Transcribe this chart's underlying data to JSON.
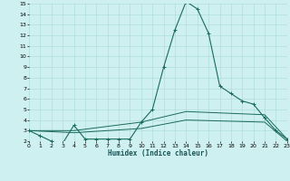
{
  "background_color": "#cff0f0",
  "grid_color": "#a8d8d8",
  "line_color": "#1a6b5a",
  "xlabel": "Humidex (Indice chaleur)",
  "xlim": [
    0,
    23
  ],
  "ylim": [
    2,
    15
  ],
  "ytick_vals": [
    2,
    3,
    4,
    5,
    6,
    7,
    8,
    9,
    10,
    11,
    12,
    13,
    14,
    15
  ],
  "xtick_vals": [
    0,
    1,
    2,
    3,
    4,
    5,
    6,
    7,
    8,
    9,
    10,
    11,
    12,
    13,
    14,
    15,
    16,
    17,
    18,
    19,
    20,
    21,
    22,
    23
  ],
  "main_x": [
    0,
    1,
    2,
    3,
    4,
    5,
    6,
    7,
    8,
    9,
    10,
    11,
    12,
    13,
    14,
    15,
    16,
    17,
    18,
    19,
    20,
    21,
    22,
    23
  ],
  "main_y": [
    3.0,
    2.5,
    2.0,
    1.8,
    3.5,
    2.2,
    2.2,
    2.2,
    2.2,
    2.2,
    3.8,
    5.0,
    9.0,
    12.5,
    15.2,
    14.5,
    12.2,
    7.2,
    6.5,
    5.8,
    5.5,
    4.2,
    3.0,
    2.2
  ],
  "aux_lines": [
    {
      "x": [
        0,
        4,
        10,
        14,
        21,
        23
      ],
      "y": [
        3.0,
        3.0,
        3.8,
        4.8,
        4.5,
        2.2
      ]
    },
    {
      "x": [
        0,
        4,
        10,
        14,
        21,
        23
      ],
      "y": [
        3.0,
        2.8,
        3.2,
        4.0,
        3.8,
        2.0
      ]
    },
    {
      "x": [
        0,
        23
      ],
      "y": [
        2.0,
        2.0
      ]
    }
  ]
}
